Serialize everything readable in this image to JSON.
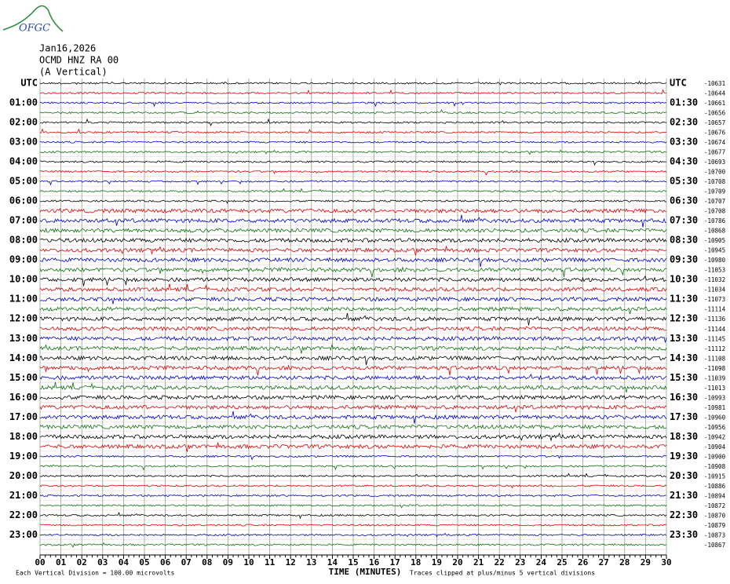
{
  "logo": "OFGC",
  "header": {
    "date": "Jan16,2026",
    "station": "OCMD HNZ RA 00",
    "component": "(A Vertical)"
  },
  "left_labels": [
    "UTC",
    "01:00",
    "02:00",
    "03:00",
    "04:00",
    "05:00",
    "06:00",
    "07:00",
    "08:00",
    "09:00",
    "10:00",
    "11:00",
    "12:00",
    "13:00",
    "14:00",
    "15:00",
    "16:00",
    "17:00",
    "18:00",
    "19:00",
    "20:00",
    "21:00",
    "22:00",
    "23:00"
  ],
  "right_labels": [
    "UTC",
    "01:30",
    "02:30",
    "03:30",
    "04:30",
    "05:30",
    "06:30",
    "07:30",
    "08:30",
    "09:30",
    "10:30",
    "11:30",
    "12:30",
    "13:30",
    "14:30",
    "15:30",
    "16:30",
    "17:30",
    "18:30",
    "19:30",
    "20:30",
    "21:30",
    "22:30",
    "23:30"
  ],
  "trace_offsets": [
    -10631,
    -10644,
    -10661,
    -10656,
    -10657,
    -10676,
    -10674,
    -10677,
    -10693,
    -10700,
    -10708,
    -10709,
    -10707,
    -10708,
    -10786,
    -10868,
    -10905,
    -10945,
    -10980,
    -11053,
    -11032,
    -11034,
    -11073,
    -11114,
    -11136,
    -11144,
    -11145,
    -11112,
    -11108,
    -11098,
    -11039,
    -11013,
    -10993,
    -10981,
    -10960,
    -10956,
    -10942,
    -10904,
    -10900,
    -10908,
    -10915,
    -10886,
    -10894,
    -10872,
    -10870,
    -10879,
    -10873,
    -10867
  ],
  "time_axis": {
    "labels": [
      "00",
      "01",
      "02",
      "03",
      "04",
      "05",
      "06",
      "07",
      "08",
      "09",
      "10",
      "11",
      "12",
      "13",
      "14",
      "15",
      "16",
      "17",
      "18",
      "19",
      "20",
      "21",
      "22",
      "23",
      "24",
      "25",
      "26",
      "27",
      "28",
      "29",
      "30"
    ],
    "title": "TIME (MINUTES)"
  },
  "footer": {
    "scale": "Each Vertical Division =  100.00 microvolts",
    "clip": "Traces clipped at plus/minus 5 vertical divisions"
  }
}
